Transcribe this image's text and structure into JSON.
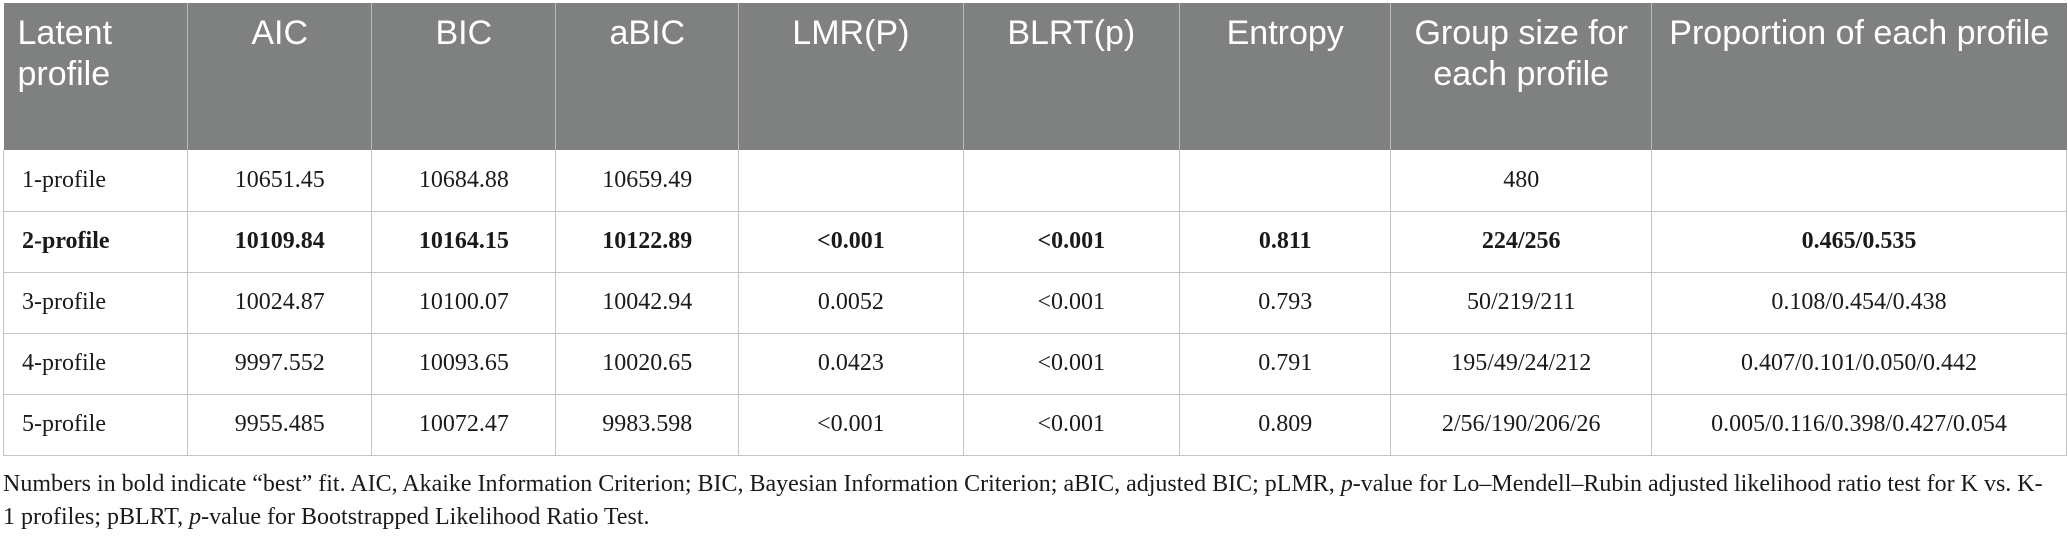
{
  "table": {
    "headers": [
      "Latent profile",
      "AIC",
      "BIC",
      "aBIC",
      "LMR(P)",
      "BLRT(p)",
      "Entropy",
      "Group size for each profile",
      "Proportion of each profile"
    ],
    "rows": [
      [
        "1-profile",
        "10651.45",
        "10684.88",
        "10659.49",
        "",
        "",
        "",
        "480",
        ""
      ],
      [
        "2-profile",
        "10109.84",
        "10164.15",
        "10122.89",
        "<0.001",
        "<0.001",
        "0.811",
        "224/256",
        "0.465/0.535"
      ],
      [
        "3-profile",
        "10024.87",
        "10100.07",
        "10042.94",
        "0.0052",
        "<0.001",
        "0.793",
        "50/219/211",
        "0.108/0.454/0.438"
      ],
      [
        "4-profile",
        "9997.552",
        "10093.65",
        "10020.65",
        "0.0423",
        "<0.001",
        "0.791",
        "195/49/24/212",
        "0.407/0.101/0.050/0.442"
      ],
      [
        "5-profile",
        "9955.485",
        "10072.47",
        "9983.598",
        "<0.001",
        "<0.001",
        "0.809",
        "2/56/190/206/26",
        "0.005/0.116/0.398/0.427/0.054"
      ]
    ],
    "bold_row_index": 1
  },
  "footnote": {
    "part1": "Numbers in bold indicate “best” fit. AIC, Akaike Information Criterion; BIC, Bayesian Information Criterion; aBIC, adjusted BIC; pLMR, ",
    "p1": "p",
    "part2": "-value for Lo–Mendell–Rubin adjusted likelihood ratio test for K vs. K-1 profiles; pBLRT, ",
    "p2": "p",
    "part3": "-value for Bootstrapped Likelihood Ratio Test."
  }
}
